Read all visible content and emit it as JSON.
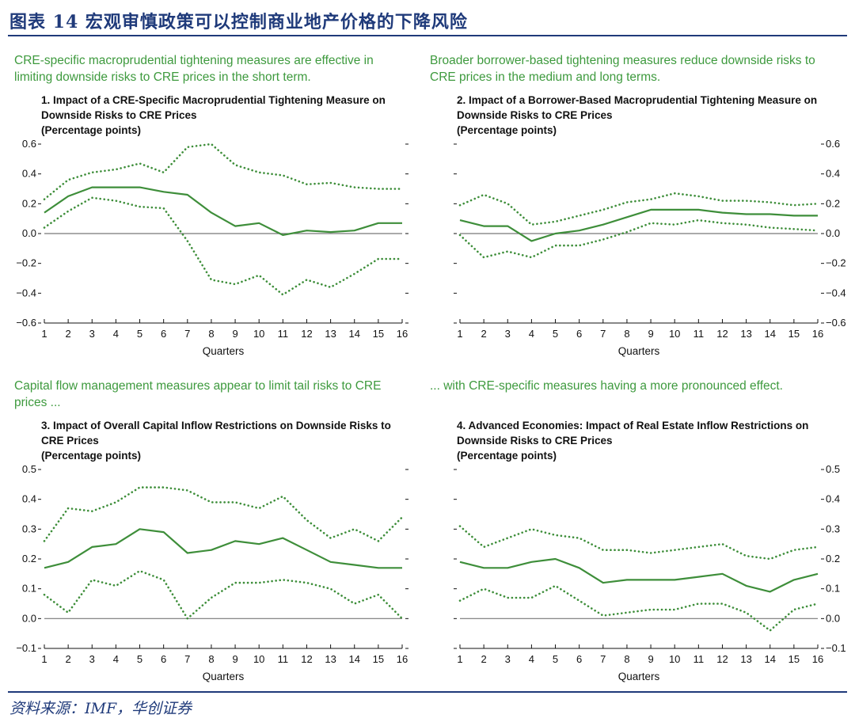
{
  "figure": {
    "title": "图表 14 宏观审慎政策可以控制商业地产价格的下降风险",
    "source": "资料来源：IMF，华创证券"
  },
  "colors": {
    "series": "#3e8e3a",
    "zero_line": "#777777",
    "caption": "#3e9a3e",
    "rule": "#1f3a7a"
  },
  "chart_data": [
    {
      "type": "line",
      "caption": "CRE-specific macroprudential tightening measures are effective in limiting downside risks to CRE prices in the short term.",
      "title": "1. Impact of a CRE-Specific Macroprudential Tightening Measure on Downside Risks to CRE Prices",
      "subtitle": "(Percentage points)",
      "xlabel": "Quarters",
      "x": [
        1,
        2,
        3,
        4,
        5,
        6,
        7,
        8,
        9,
        10,
        11,
        12,
        13,
        14,
        15,
        16
      ],
      "ylim": [
        -0.6,
        0.6
      ],
      "yticks": [
        -0.6,
        -0.4,
        -0.2,
        0.0,
        0.2,
        0.4,
        0.6
      ],
      "ytick_labels": [
        "−0.6",
        "−0.4",
        "−0.2",
        "0.0",
        "0.2",
        "0.4",
        "0.6"
      ],
      "axis_side": "left",
      "series": [
        {
          "name": "estimate",
          "style": "solid",
          "values": [
            0.14,
            0.25,
            0.31,
            0.31,
            0.31,
            0.28,
            0.26,
            0.14,
            0.05,
            0.07,
            -0.01,
            0.02,
            0.01,
            0.02,
            0.07,
            0.07
          ]
        },
        {
          "name": "upper bound",
          "style": "dotted",
          "values": [
            0.23,
            0.36,
            0.41,
            0.43,
            0.47,
            0.41,
            0.58,
            0.6,
            0.46,
            0.41,
            0.39,
            0.33,
            0.34,
            0.31,
            0.3,
            0.3
          ]
        },
        {
          "name": "lower bound",
          "style": "dotted",
          "values": [
            0.04,
            0.15,
            0.24,
            0.22,
            0.18,
            0.17,
            -0.05,
            -0.31,
            -0.34,
            -0.28,
            -0.41,
            -0.31,
            -0.36,
            -0.27,
            -0.17,
            -0.17
          ]
        }
      ]
    },
    {
      "type": "line",
      "caption": "Broader borrower-based tightening measures reduce downside risks to CRE prices in the medium and long terms.",
      "title": "2. Impact of a Borrower-Based Macroprudential Tightening Measure on Downside Risks to CRE Prices",
      "subtitle": "(Percentage points)",
      "xlabel": "Quarters",
      "x": [
        1,
        2,
        3,
        4,
        5,
        6,
        7,
        8,
        9,
        10,
        11,
        12,
        13,
        14,
        15,
        16
      ],
      "ylim": [
        -0.6,
        0.6
      ],
      "yticks": [
        -0.6,
        -0.4,
        -0.2,
        0.0,
        0.2,
        0.4,
        0.6
      ],
      "ytick_labels": [
        "−0.6",
        "−0.4",
        "−0.2",
        "0.0",
        "0.2",
        "0.4",
        "0.6"
      ],
      "axis_side": "right",
      "series": [
        {
          "name": "estimate",
          "style": "solid",
          "values": [
            0.09,
            0.05,
            0.05,
            -0.05,
            0.0,
            0.02,
            0.06,
            0.11,
            0.16,
            0.16,
            0.16,
            0.14,
            0.13,
            0.13,
            0.12,
            0.12
          ]
        },
        {
          "name": "upper bound",
          "style": "dotted",
          "values": [
            0.19,
            0.26,
            0.2,
            0.06,
            0.08,
            0.12,
            0.16,
            0.21,
            0.23,
            0.27,
            0.25,
            0.22,
            0.22,
            0.21,
            0.19,
            0.2
          ]
        },
        {
          "name": "lower bound",
          "style": "dotted",
          "values": [
            -0.01,
            -0.16,
            -0.12,
            -0.16,
            -0.08,
            -0.08,
            -0.04,
            0.01,
            0.07,
            0.06,
            0.09,
            0.07,
            0.06,
            0.04,
            0.03,
            0.02
          ]
        }
      ]
    },
    {
      "type": "line",
      "caption": "Capital flow management measures appear to limit tail risks to CRE prices ...",
      "title": "3. Impact of Overall Capital Inflow Restrictions on Downside Risks to CRE Prices",
      "subtitle": "(Percentage points)",
      "xlabel": "Quarters",
      "x": [
        1,
        2,
        3,
        4,
        5,
        6,
        7,
        8,
        9,
        10,
        11,
        12,
        13,
        14,
        15,
        16
      ],
      "ylim": [
        -0.1,
        0.5
      ],
      "yticks": [
        -0.1,
        0.0,
        0.1,
        0.2,
        0.3,
        0.4,
        0.5
      ],
      "ytick_labels": [
        "−0.1",
        "0.0",
        "0.1",
        "0.2",
        "0.3",
        "0.4",
        "0.5"
      ],
      "axis_side": "left",
      "series": [
        {
          "name": "estimate",
          "style": "solid",
          "values": [
            0.17,
            0.19,
            0.24,
            0.25,
            0.3,
            0.29,
            0.22,
            0.23,
            0.26,
            0.25,
            0.27,
            0.23,
            0.19,
            0.18,
            0.17,
            0.17
          ]
        },
        {
          "name": "upper bound",
          "style": "dotted",
          "values": [
            0.26,
            0.37,
            0.36,
            0.39,
            0.44,
            0.44,
            0.43,
            0.39,
            0.39,
            0.37,
            0.41,
            0.33,
            0.27,
            0.3,
            0.26,
            0.34
          ]
        },
        {
          "name": "lower bound",
          "style": "dotted",
          "values": [
            0.08,
            0.02,
            0.13,
            0.11,
            0.16,
            0.13,
            0.0,
            0.07,
            0.12,
            0.12,
            0.13,
            0.12,
            0.1,
            0.05,
            0.08,
            0.0
          ]
        }
      ]
    },
    {
      "type": "line",
      "caption": "... with CRE-specific measures having a more pronounced effect.",
      "title": "4. Advanced Economies: Impact of Real Estate Inflow Restrictions on Downside Risks to CRE Prices",
      "subtitle": "(Percentage points)",
      "xlabel": "Quarters",
      "x": [
        1,
        2,
        3,
        4,
        5,
        6,
        7,
        8,
        9,
        10,
        11,
        12,
        13,
        14,
        15,
        16
      ],
      "ylim": [
        -0.1,
        0.5
      ],
      "yticks": [
        -0.1,
        0.0,
        0.1,
        0.2,
        0.3,
        0.4,
        0.5
      ],
      "ytick_labels": [
        "−0.1",
        "0.0",
        "0.1",
        "0.2",
        "0.3",
        "0.4",
        "0.5"
      ],
      "axis_side": "right",
      "series": [
        {
          "name": "estimate",
          "style": "solid",
          "values": [
            0.19,
            0.17,
            0.17,
            0.19,
            0.2,
            0.17,
            0.12,
            0.13,
            0.13,
            0.13,
            0.14,
            0.15,
            0.11,
            0.09,
            0.13,
            0.15
          ]
        },
        {
          "name": "upper bound",
          "style": "dotted",
          "values": [
            0.31,
            0.24,
            0.27,
            0.3,
            0.28,
            0.27,
            0.23,
            0.23,
            0.22,
            0.23,
            0.24,
            0.25,
            0.21,
            0.2,
            0.23,
            0.24
          ]
        },
        {
          "name": "lower bound",
          "style": "dotted",
          "values": [
            0.06,
            0.1,
            0.07,
            0.07,
            0.11,
            0.06,
            0.01,
            0.02,
            0.03,
            0.03,
            0.05,
            0.05,
            0.02,
            -0.04,
            0.03,
            0.05
          ]
        }
      ]
    }
  ]
}
